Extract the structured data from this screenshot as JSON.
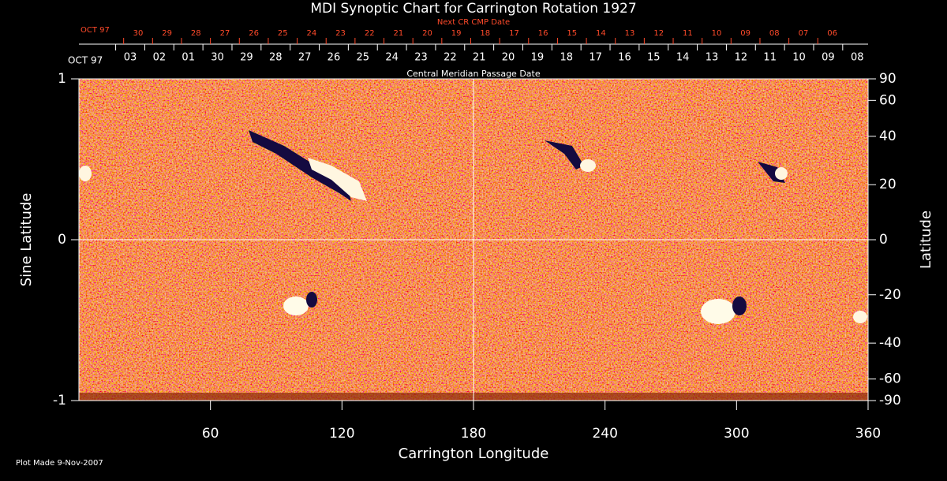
{
  "chart_data": {
    "type": "synoptic-map",
    "title": "MDI Synoptic Chart for Carrington Rotation 1927",
    "x_label": "Carrington Longitude",
    "y_label": "Sine Latitude",
    "y2_label": "Latitude",
    "xlim": [
      0,
      360
    ],
    "xticks": [
      60,
      120,
      180,
      240,
      300,
      360
    ],
    "ylim": [
      -1,
      1
    ],
    "yticks": [
      -1,
      0,
      1
    ],
    "y2lim": [
      -90,
      90
    ],
    "y2scale": "sine",
    "y2ticks": [
      90,
      60,
      40,
      20,
      0,
      -20,
      -40,
      -60,
      -90
    ],
    "grid_x": [
      180
    ],
    "grid_y": [
      0
    ],
    "cmp_axis": {
      "label": "Central Meridian Passage Date",
      "start": "OCT 97",
      "dates": [
        "03",
        "02",
        "01",
        "30",
        "29",
        "28",
        "27",
        "26",
        "25",
        "24",
        "23",
        "22",
        "21",
        "20",
        "19",
        "18",
        "17",
        "16",
        "15",
        "14",
        "13",
        "12",
        "11",
        "10",
        "09",
        "08"
      ]
    },
    "next_cmp_axis": {
      "label": "Next CR CMP Date",
      "start": "OCT 97",
      "color": "#ff4a2a",
      "dates": [
        "30",
        "29",
        "28",
        "27",
        "26",
        "25",
        "24",
        "23",
        "22",
        "21",
        "20",
        "19",
        "18",
        "17",
        "16",
        "15",
        "14",
        "13",
        "12",
        "11",
        "10",
        "09",
        "08",
        "07",
        "06"
      ]
    },
    "footnote": "Plot Made  9-Nov-2007"
  }
}
